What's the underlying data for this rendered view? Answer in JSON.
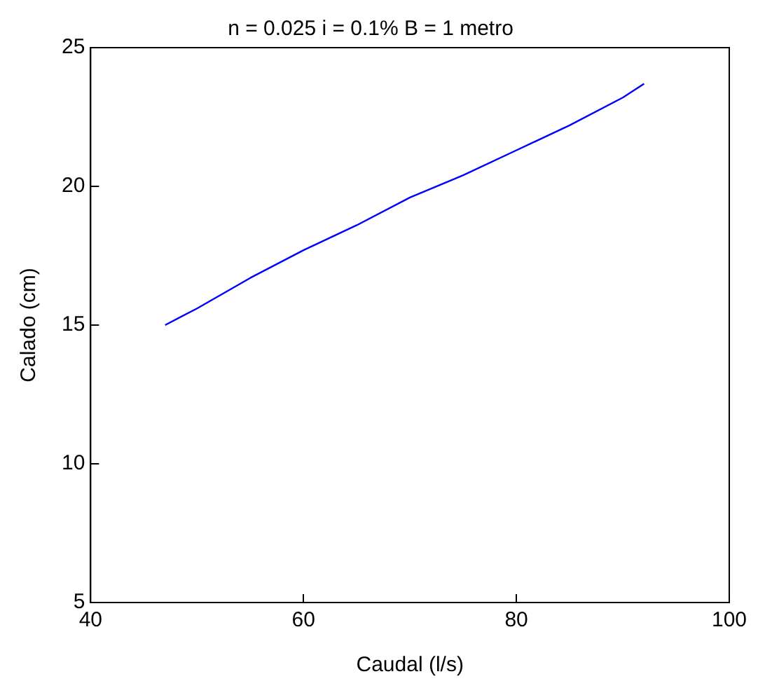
{
  "chart_data": {
    "type": "line",
    "title": "n = 0.025 i = 0.1% B = 1 metro",
    "xlabel": "Caudal (l/s)",
    "ylabel": "Calado (cm)",
    "series": [
      {
        "color": "#0000ff",
        "x": [
          47,
          50,
          55,
          60,
          65,
          70,
          75,
          80,
          85,
          90,
          92
        ],
        "values": [
          15,
          15.6,
          16.7,
          17.7,
          18.6,
          19.6,
          20.4,
          21.3,
          22.2,
          23.2,
          23.7
        ]
      }
    ],
    "xlim": [
      40,
      100
    ],
    "xticks": [
      40,
      60,
      80,
      100
    ],
    "ylim": [
      5,
      25
    ],
    "yticks": [
      5,
      10,
      15,
      20,
      25
    ],
    "grid": false,
    "legend": false,
    "marker": "none",
    "line_style": "solid"
  }
}
